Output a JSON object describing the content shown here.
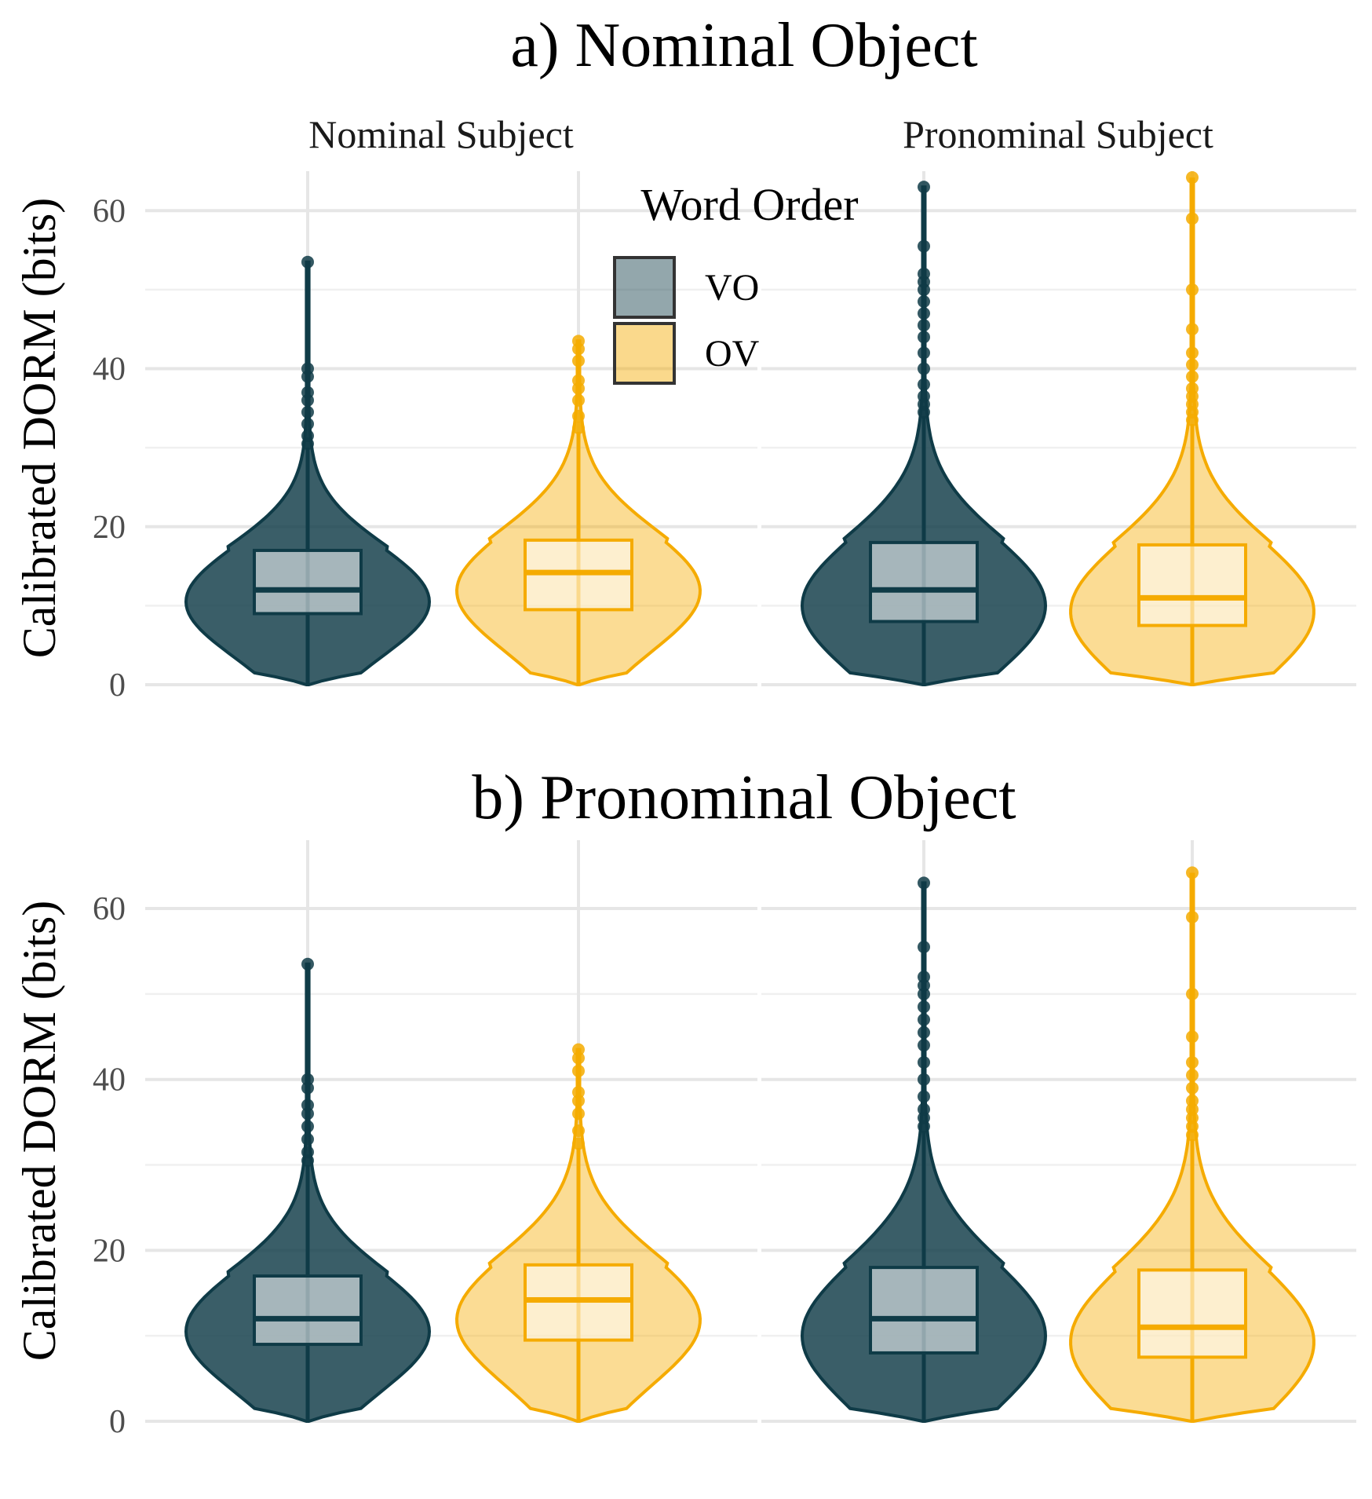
{
  "colors": {
    "VO": "#0f3b47",
    "OV": "#f5ab00"
  },
  "legend": {
    "title": "Word Order",
    "items": [
      {
        "key": "VO",
        "label": "VO",
        "color": "#0f3b47"
      },
      {
        "key": "OV",
        "label": "OV",
        "color": "#f5ab00"
      }
    ]
  },
  "y_axis_title": "Calibrated DORM (bits)",
  "facet_labels": [
    "Nominal Subject",
    "Pronominal Subject"
  ],
  "chart_data": [
    {
      "type": "violin",
      "title": "a) Nominal Object",
      "ylabel": "Calibrated DORM (bits)",
      "xlabel": "",
      "ylim": [
        0,
        65
      ],
      "yticks": [
        0,
        20,
        40,
        60
      ],
      "grid": true,
      "legend": "top-center",
      "facets": [
        {
          "label": "Nominal Subject",
          "groups": [
            {
              "name": "VO",
              "min": 0,
              "q1": 9,
              "median": 12,
              "q3": 17,
              "whisker_max": 30,
              "max": 53.5,
              "outliers": [
                30.5,
                31.5,
                33,
                34.5,
                36,
                37,
                39,
                40,
                53.5
              ]
            },
            {
              "name": "OV",
              "min": 0,
              "q1": 9.5,
              "median": 14.2,
              "q3": 18.3,
              "whisker_max": 32,
              "max": 43.5,
              "outliers": [
                32.5,
                34,
                36,
                37.5,
                38.5,
                41,
                42.5,
                43.5
              ]
            }
          ]
        },
        {
          "label": "Pronominal Subject",
          "groups": [
            {
              "name": "VO",
              "min": 0,
              "q1": 8,
              "median": 12,
              "q3": 18,
              "whisker_max": 34,
              "max": 63,
              "outliers": [
                34.5,
                35.5,
                36.5,
                38,
                40,
                42,
                44,
                45.5,
                47,
                48.5,
                50,
                51,
                52,
                55.5,
                63
              ]
            },
            {
              "name": "OV",
              "min": 0,
              "q1": 7.5,
              "median": 11,
              "q3": 17.7,
              "whisker_max": 33,
              "max": 64.2,
              "outliers": [
                33.5,
                34.5,
                35.5,
                36.5,
                37.5,
                39,
                40.5,
                42,
                45,
                50,
                59,
                64.2
              ]
            }
          ]
        }
      ]
    },
    {
      "type": "violin",
      "title": "b) Pronominal Object",
      "ylabel": "Calibrated DORM (bits)",
      "xlabel": "",
      "ylim": [
        0,
        68
      ],
      "yticks": [
        0,
        20,
        40,
        60
      ],
      "grid": true,
      "facets": [
        {
          "label": "Nominal Subject",
          "groups": [
            {
              "name": "VO",
              "min": 0,
              "q1": 9,
              "median": 12,
              "q3": 17,
              "whisker_max": 30,
              "max": 53.5,
              "outliers": [
                30.5,
                31.5,
                33,
                34.5,
                36,
                37,
                39,
                40,
                53.5
              ]
            },
            {
              "name": "OV",
              "min": 0,
              "q1": 9.5,
              "median": 14.2,
              "q3": 18.3,
              "whisker_max": 32,
              "max": 43.5,
              "outliers": [
                32.5,
                34,
                36,
                37.5,
                38.5,
                41,
                42.5,
                43.5
              ]
            }
          ]
        },
        {
          "label": "Pronominal Subject",
          "groups": [
            {
              "name": "VO",
              "min": 0,
              "q1": 8,
              "median": 12,
              "q3": 18,
              "whisker_max": 34,
              "max": 63,
              "outliers": [
                34.5,
                35.5,
                36.5,
                38,
                40,
                42,
                44,
                45.5,
                47,
                48.5,
                50,
                51,
                52,
                55.5,
                63
              ]
            },
            {
              "name": "OV",
              "min": 0,
              "q1": 7.5,
              "median": 11,
              "q3": 17.7,
              "whisker_max": 33,
              "max": 64.2,
              "outliers": [
                33.5,
                34.5,
                35.5,
                36.5,
                37.5,
                39,
                40.5,
                42,
                45,
                50,
                59,
                64.2
              ]
            }
          ]
        }
      ]
    }
  ]
}
